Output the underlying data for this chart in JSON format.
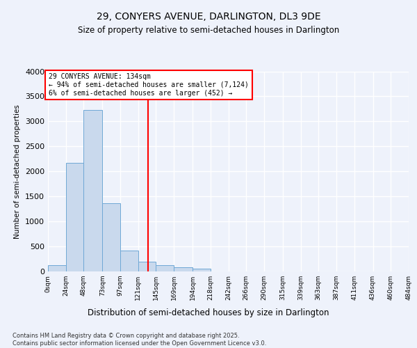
{
  "title1": "29, CONYERS AVENUE, DARLINGTON, DL3 9DE",
  "title2": "Size of property relative to semi-detached houses in Darlington",
  "xlabel": "Distribution of semi-detached houses by size in Darlington",
  "ylabel": "Number of semi-detached properties",
  "bin_labels": [
    "0sqm",
    "24sqm",
    "48sqm",
    "73sqm",
    "97sqm",
    "121sqm",
    "145sqm",
    "169sqm",
    "194sqm",
    "218sqm",
    "242sqm",
    "266sqm",
    "290sqm",
    "315sqm",
    "339sqm",
    "363sqm",
    "387sqm",
    "411sqm",
    "436sqm",
    "460sqm",
    "484sqm"
  ],
  "bin_edges": [
    0,
    24,
    48,
    73,
    97,
    121,
    145,
    169,
    194,
    218,
    242,
    266,
    290,
    315,
    339,
    363,
    387,
    411,
    436,
    460,
    484
  ],
  "bar_heights": [
    130,
    2170,
    3230,
    1370,
    415,
    190,
    130,
    90,
    55,
    0,
    0,
    0,
    0,
    0,
    0,
    0,
    0,
    0,
    0,
    0
  ],
  "bar_color": "#c9d9ed",
  "bar_edge_color": "#6fa8d6",
  "property_size": 134,
  "vline_color": "red",
  "annotation_text": "29 CONYERS AVENUE: 134sqm\n← 94% of semi-detached houses are smaller (7,124)\n6% of semi-detached houses are larger (452) →",
  "annotation_box_color": "red",
  "ylim": [
    0,
    4000
  ],
  "yticks": [
    0,
    500,
    1000,
    1500,
    2000,
    2500,
    3000,
    3500,
    4000
  ],
  "footer_text": "Contains HM Land Registry data © Crown copyright and database right 2025.\nContains public sector information licensed under the Open Government Licence v3.0.",
  "bg_color": "#eef2fb",
  "plot_bg_color": "#eef2fb",
  "grid_color": "white"
}
